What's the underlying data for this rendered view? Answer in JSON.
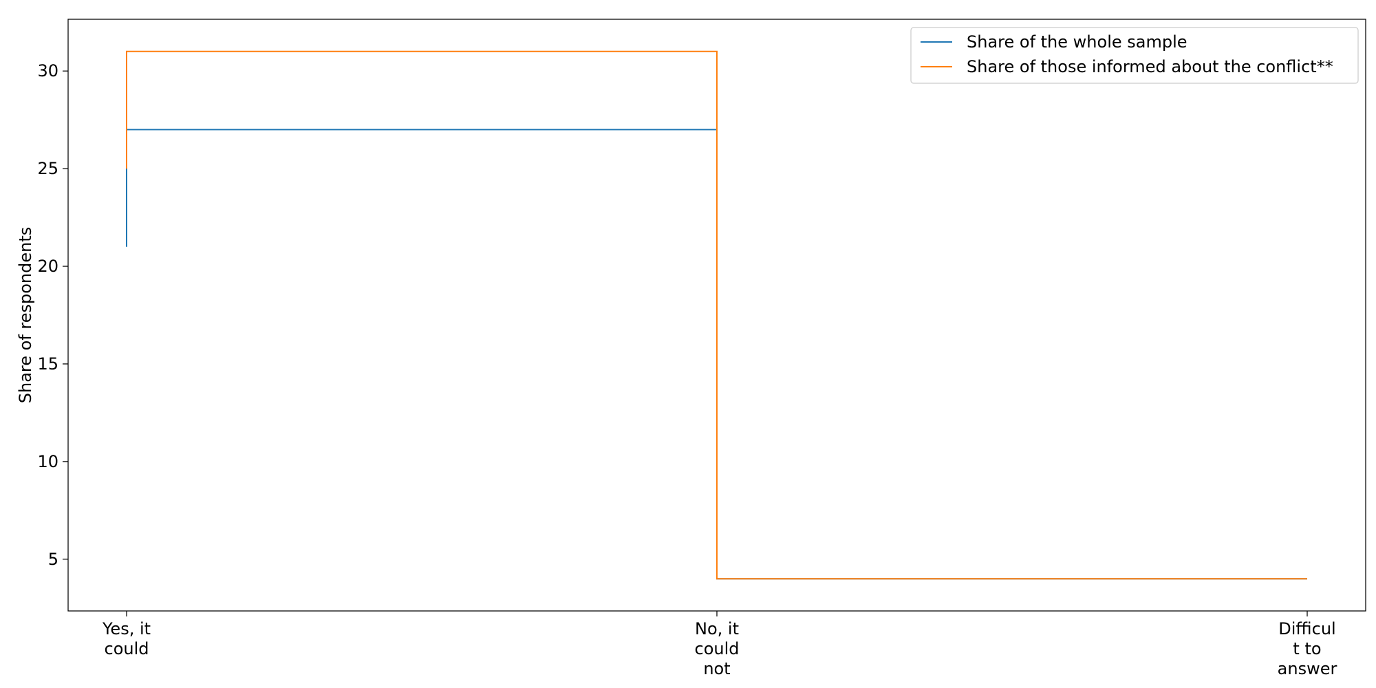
{
  "chart_data": {
    "type": "line",
    "drawstyle": "steps-post",
    "categories": [
      "Yes, it could",
      "No, it could not",
      "Difficult to answer"
    ],
    "category_tick_lines": [
      [
        "Yes, it",
        "could"
      ],
      [
        "No, it",
        "could",
        "not"
      ],
      [
        "Difficul",
        "t to",
        "answer"
      ]
    ],
    "series": [
      {
        "name": "Share of the whole sample",
        "color": "#1f77b4",
        "points": [
          {
            "x": 0,
            "y": 21
          },
          {
            "x": 0,
            "y": 25
          },
          {
            "x": 0,
            "y": 27
          },
          {
            "x": 1,
            "y": 27
          },
          {
            "x": 1,
            "y": 4
          },
          {
            "x": 2,
            "y": 4
          }
        ]
      },
      {
        "name": "Share of those informed about the conflict**",
        "color": "#ff7f0e",
        "points": [
          {
            "x": 0,
            "y": 25
          },
          {
            "x": 0,
            "y": 31
          },
          {
            "x": 1,
            "y": 31
          },
          {
            "x": 1,
            "y": 4
          },
          {
            "x": 2,
            "y": 4
          }
        ]
      }
    ],
    "title": "",
    "xlabel": "",
    "ylabel": "Share of respondents",
    "ylim": [
      2.35,
      32.65
    ],
    "yticks": [
      5,
      10,
      15,
      20,
      25,
      30
    ],
    "grid": false,
    "legend_position": "top-right"
  }
}
